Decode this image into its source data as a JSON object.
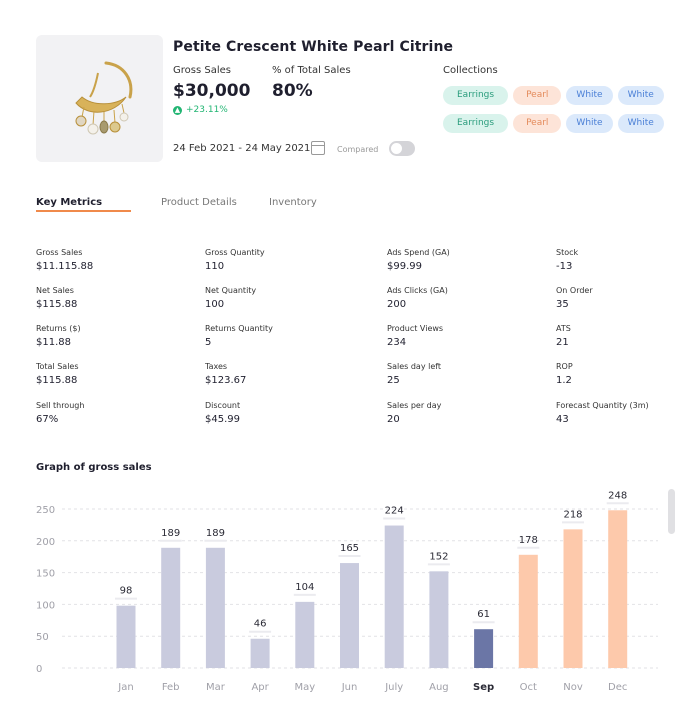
{
  "product": {
    "title": "Petite Crescent White Pearl Citrine",
    "gross_sales_label": "Gross Sales",
    "gross_sales_value": "$30,000",
    "gross_sales_change": "+23.11%",
    "pct_total_label": "% of Total Sales",
    "pct_total_value": "80%",
    "collections_label": "Collections",
    "collections_row1": [
      "Earrings",
      "Pearl",
      "White",
      "White"
    ],
    "collections_row2": [
      "Earrings",
      "Pearl",
      "White",
      "White"
    ],
    "date_range": "24 Feb 2021 - 24 May 2021",
    "compared_label": "Compared"
  },
  "tabs": [
    "Key Metrics",
    "Product Details",
    "Inventory"
  ],
  "metrics": [
    [
      {
        "label": "Gross Sales",
        "value": "$11.115.88"
      },
      {
        "label": "Net Sales",
        "value": "$115.88"
      },
      {
        "label": "Returns ($)",
        "value": "$11.88"
      },
      {
        "label": "Total Sales",
        "value": "$115.88"
      },
      {
        "label": "Sell through",
        "value": "67%"
      }
    ],
    [
      {
        "label": "Gross Quantity",
        "value": "110"
      },
      {
        "label": "Net Quantity",
        "value": "100"
      },
      {
        "label": "Returns Quantity",
        "value": "5"
      },
      {
        "label": "Taxes",
        "value": "$123.67"
      },
      {
        "label": "Discount",
        "value": "$45.99"
      }
    ],
    [
      {
        "label": "Ads Spend (GA)",
        "value": "$99.99"
      },
      {
        "label": "Ads Clicks (GA)",
        "value": "200"
      },
      {
        "label": "Product Views",
        "value": "234"
      },
      {
        "label": "Sales day left",
        "value": "25"
      },
      {
        "label": "Sales per day",
        "value": "20"
      }
    ],
    [
      {
        "label": "Stock",
        "value": "-13"
      },
      {
        "label": "On Order",
        "value": "35"
      },
      {
        "label": "ATS",
        "value": "21"
      },
      {
        "label": "ROP",
        "value": "1.2"
      },
      {
        "label": "Forecast Quantity (3m)",
        "value": "43"
      }
    ]
  ],
  "colors": {
    "past": "#c9cbde",
    "current": "#6b76a6",
    "forecast": "#fdc9ab",
    "accent": "#f08a4b"
  },
  "chart_data": {
    "type": "bar",
    "title": "Graph of gross sales",
    "categories": [
      "Jan",
      "Feb",
      "Mar",
      "Apr",
      "May",
      "Jun",
      "July",
      "Aug",
      "Sep",
      "Oct",
      "Nov",
      "Dec"
    ],
    "values": [
      98,
      189,
      189,
      46,
      104,
      165,
      224,
      152,
      61,
      178,
      218,
      248
    ],
    "data_labels": [
      "98",
      "189",
      "189",
      "46",
      "104",
      "165",
      "224",
      "152",
      "61",
      "178",
      "218",
      "248"
    ],
    "yticks": [
      0,
      50,
      100,
      150,
      200,
      250
    ],
    "ylim": [
      0,
      250
    ],
    "highlight_index": 8,
    "forecast_from_index": 9,
    "grid": true
  }
}
